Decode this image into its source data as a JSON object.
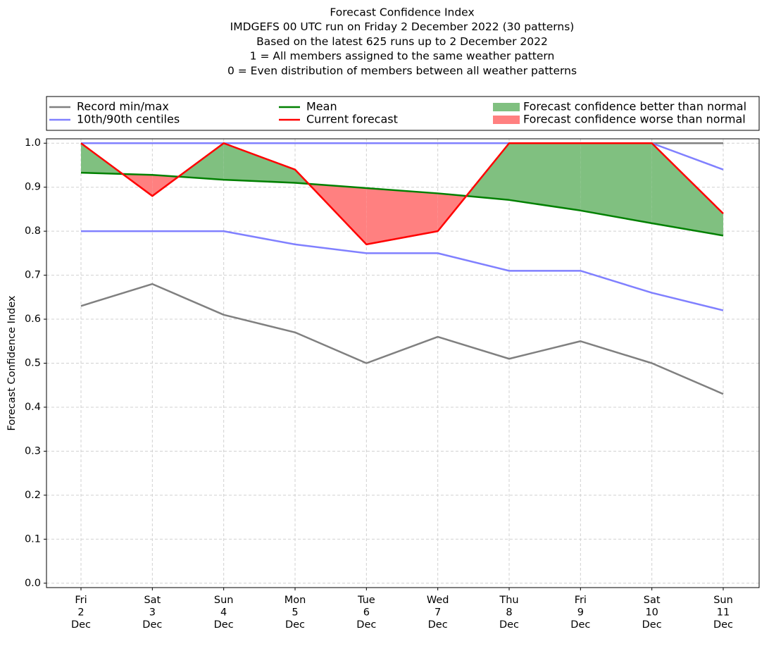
{
  "chart_data": {
    "type": "line",
    "title": [
      "Forecast Confidence Index",
      "IMDGEFS 00 UTC run on Friday 2 December 2022 (30 patterns)",
      "Based on the latest 625 runs up to 2 December 2022",
      "1 = All members assigned to the same weather pattern",
      "0 = Even distribution of members between all weather patterns"
    ],
    "ylabel": "Forecast Confidence Index",
    "categories": [
      [
        "Fri",
        "2",
        "Dec"
      ],
      [
        "Sat",
        "3",
        "Dec"
      ],
      [
        "Sun",
        "4",
        "Dec"
      ],
      [
        "Mon",
        "5",
        "Dec"
      ],
      [
        "Tue",
        "6",
        "Dec"
      ],
      [
        "Wed",
        "7",
        "Dec"
      ],
      [
        "Thu",
        "8",
        "Dec"
      ],
      [
        "Fri",
        "9",
        "Dec"
      ],
      [
        "Sat",
        "10",
        "Dec"
      ],
      [
        "Sun",
        "11",
        "Dec"
      ]
    ],
    "series": [
      {
        "name": "Record min/max",
        "color": "#808080",
        "lower": [
          0.63,
          0.68,
          0.61,
          0.57,
          0.5,
          0.56,
          0.51,
          0.55,
          0.5,
          0.43
        ],
        "upper": [
          1.0,
          1.0,
          1.0,
          1.0,
          1.0,
          1.0,
          1.0,
          1.0,
          1.0,
          1.0
        ]
      },
      {
        "name": "10th/90th centiles",
        "color": "#8080ff",
        "lower": [
          0.8,
          0.8,
          0.8,
          0.77,
          0.75,
          0.75,
          0.71,
          0.71,
          0.66,
          0.62
        ],
        "upper": [
          1.0,
          1.0,
          1.0,
          1.0,
          1.0,
          1.0,
          1.0,
          1.0,
          1.0,
          0.94
        ]
      },
      {
        "name": "Mean",
        "color": "#008000",
        "values": [
          0.933,
          0.928,
          0.917,
          0.91,
          0.898,
          0.886,
          0.871,
          0.847,
          0.818,
          0.79
        ]
      },
      {
        "name": "Current forecast",
        "color": "#ff0000",
        "values": [
          1.0,
          0.88,
          1.0,
          0.94,
          0.77,
          0.8,
          1.0,
          1.0,
          1.0,
          0.84
        ]
      }
    ],
    "fills": [
      {
        "name": "Forecast confidence better than normal",
        "color": "#80c080"
      },
      {
        "name": "Forecast confidence worse than normal",
        "color": "#ff8080"
      }
    ],
    "ylim": [
      -0.01,
      1.01
    ],
    "yticks": [
      {
        "value": 0,
        "label": "0.0"
      },
      {
        "value": 0.1,
        "label": "0.1"
      },
      {
        "value": 0.2,
        "label": "0.2"
      },
      {
        "value": 0.3,
        "label": "0.3"
      },
      {
        "value": 0.4,
        "label": "0.4"
      },
      {
        "value": 0.5,
        "label": "0.5"
      },
      {
        "value": 0.6,
        "label": "0.6"
      },
      {
        "value": 0.7,
        "label": "0.7"
      },
      {
        "value": 0.8,
        "label": "0.8"
      },
      {
        "value": 0.9,
        "label": "0.9"
      },
      {
        "value": 1.0,
        "label": "1.0"
      }
    ],
    "grid": true
  }
}
